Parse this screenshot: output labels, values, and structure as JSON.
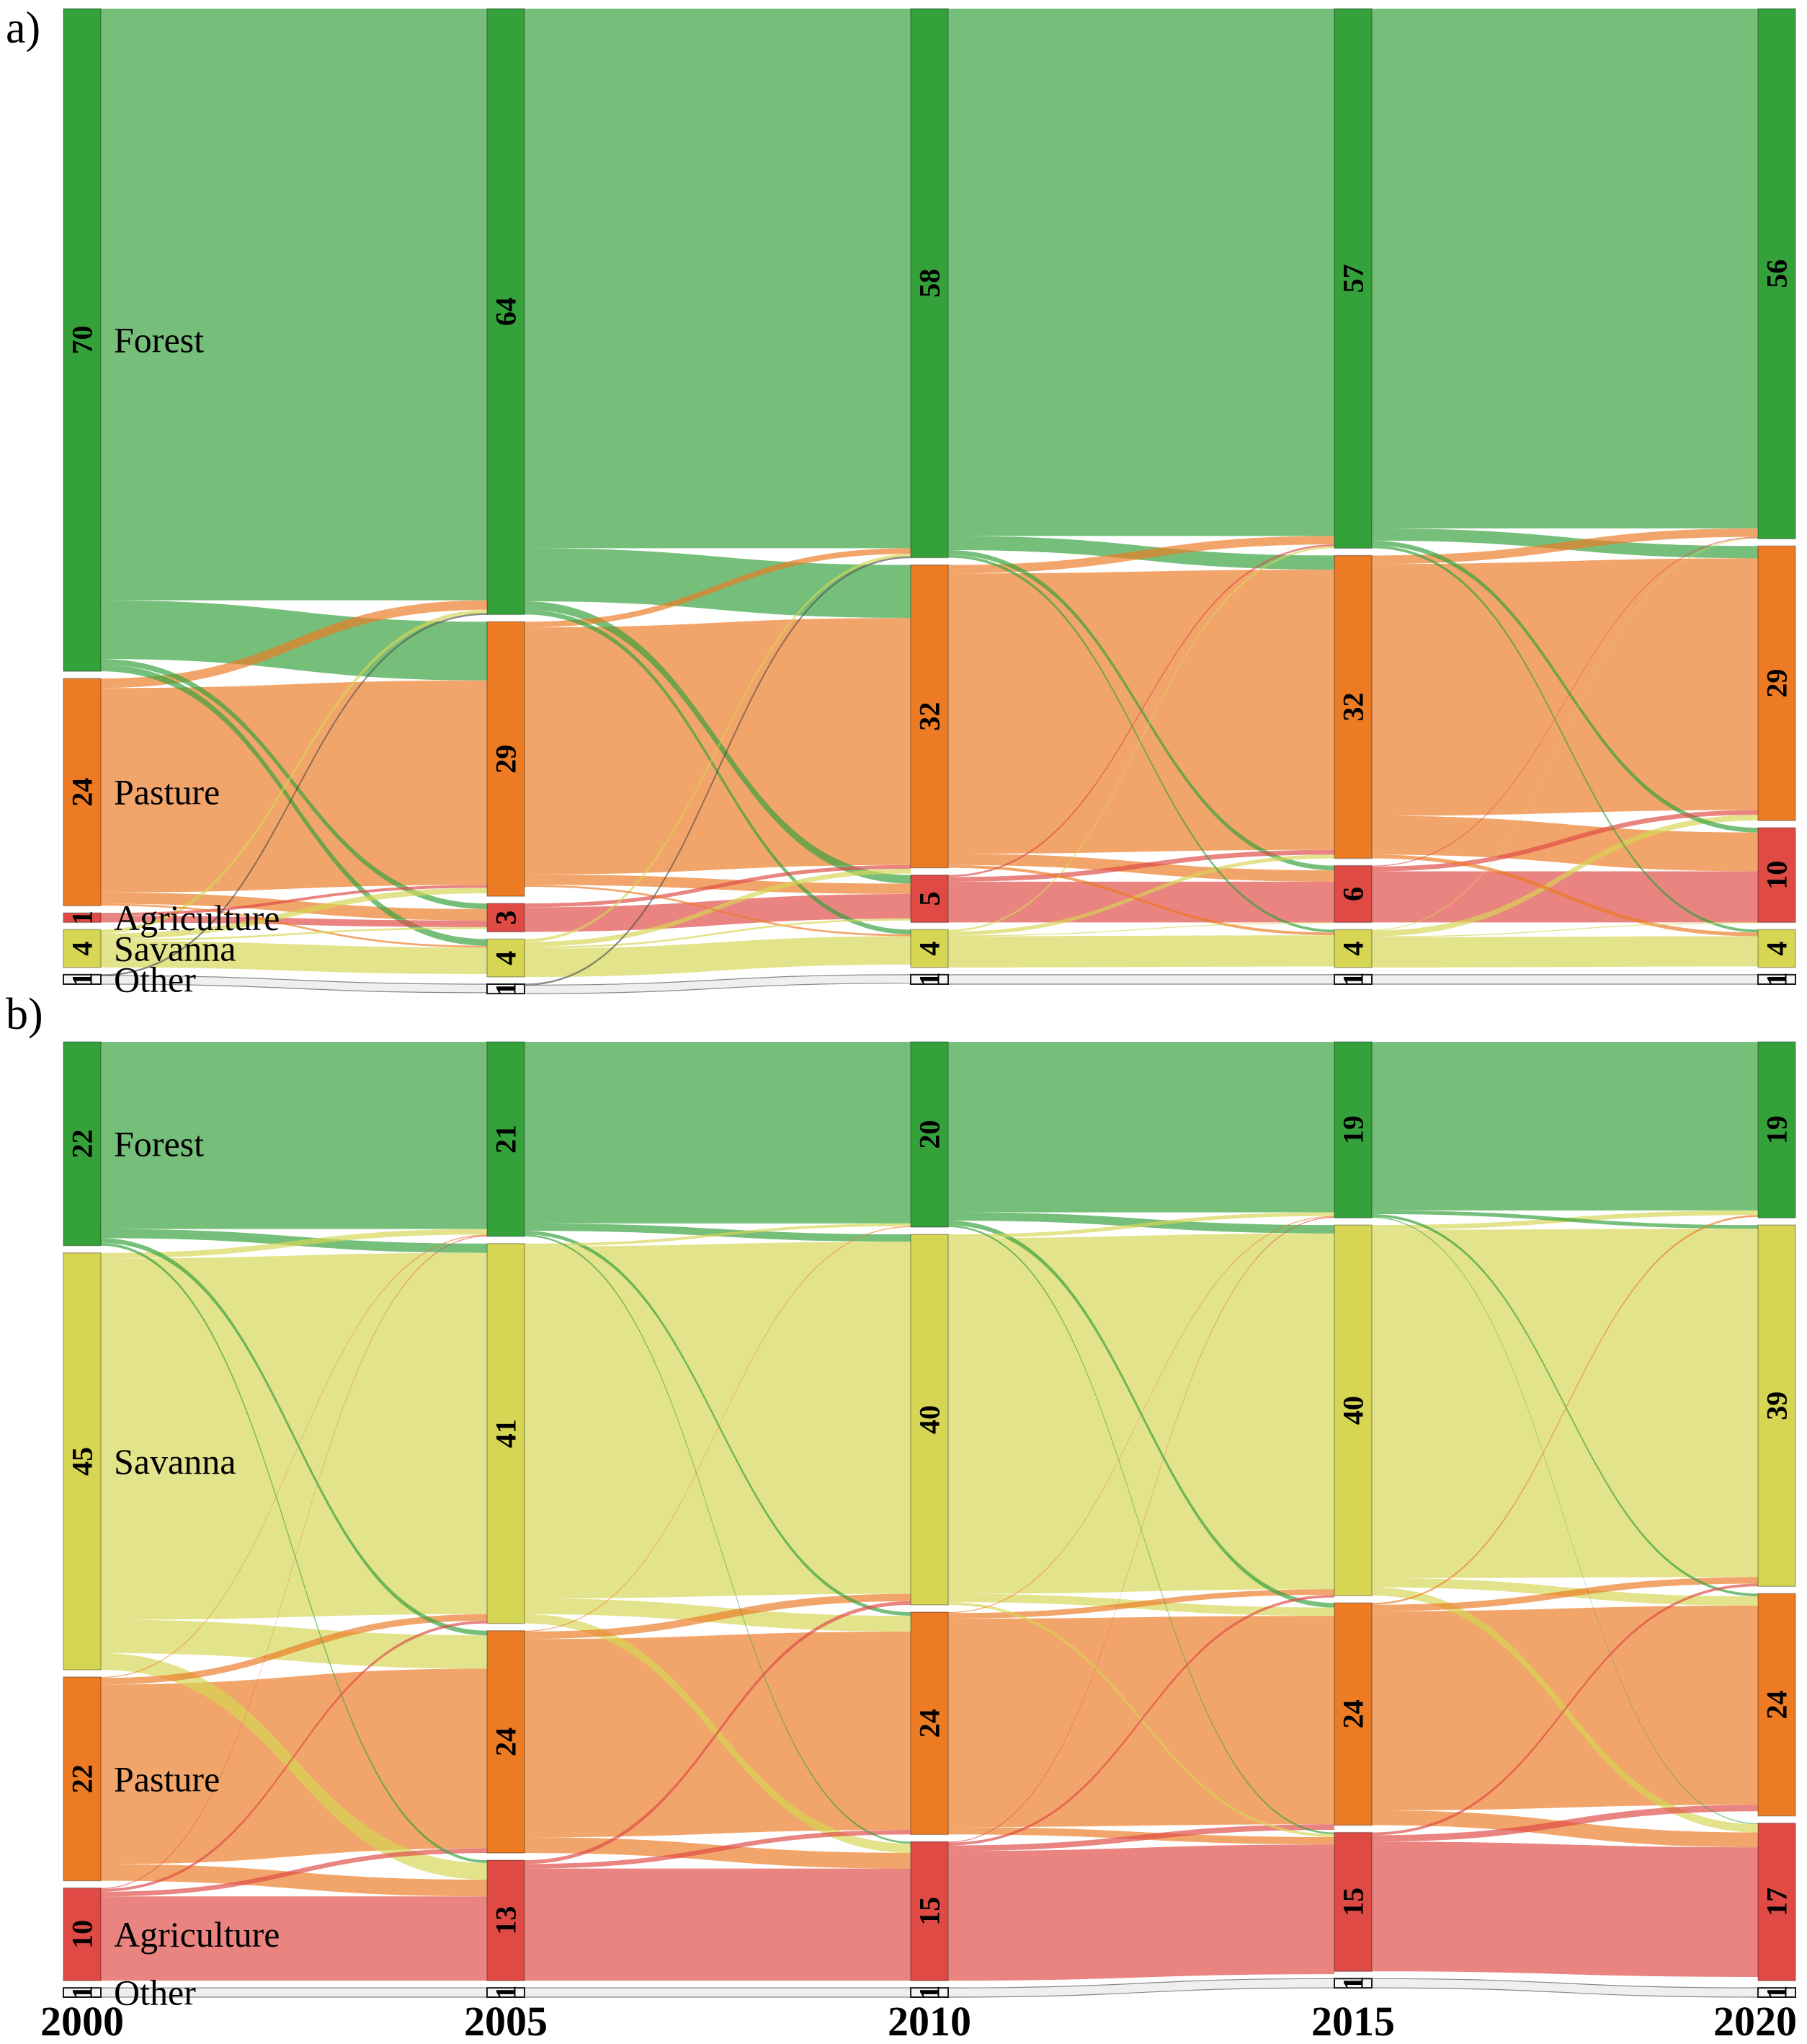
{
  "figure": {
    "panel_a_label": "a)",
    "panel_b_label": "b)",
    "x_axis_years": [
      "2000",
      "2005",
      "2010",
      "2015",
      "2020"
    ]
  },
  "chart_data": [
    {
      "type": "sankey",
      "panel": "a",
      "years": [
        "2000",
        "2005",
        "2010",
        "2015",
        "2020"
      ],
      "grid": false,
      "legend_position": "none",
      "categories": [
        {
          "name": "Forest",
          "color": "#35a13b"
        },
        {
          "name": "Pasture",
          "color": "#ec7b24"
        },
        {
          "name": "Agriculture",
          "color": "#df4a45"
        },
        {
          "name": "Savanna",
          "color": "#d6d654"
        },
        {
          "name": "Other",
          "color": "#f5f5f5"
        }
      ],
      "node_values": {
        "Forest": [
          70,
          64,
          58,
          57,
          56
        ],
        "Pasture": [
          24,
          29,
          32,
          32,
          29
        ],
        "Agriculture": [
          1,
          3,
          5,
          6,
          10
        ],
        "Savanna": [
          4,
          4,
          4,
          4,
          4
        ],
        "Other": [
          1,
          1,
          1,
          1,
          1
        ]
      },
      "flows": [
        [
          [
            "Forest",
            "Forest",
            62.5
          ],
          [
            "Forest",
            "Pasture",
            6.2
          ],
          [
            "Forest",
            "Agriculture",
            0.6
          ],
          [
            "Forest",
            "Savanna",
            0.7
          ],
          [
            "Pasture",
            "Forest",
            1.0
          ],
          [
            "Pasture",
            "Pasture",
            21.6
          ],
          [
            "Pasture",
            "Agriculture",
            1.2
          ],
          [
            "Pasture",
            "Savanna",
            0.2
          ],
          [
            "Agriculture",
            "Pasture",
            0.3
          ],
          [
            "Agriculture",
            "Agriculture",
            0.7
          ],
          [
            "Savanna",
            "Forest",
            0.4
          ],
          [
            "Savanna",
            "Pasture",
            0.6
          ],
          [
            "Savanna",
            "Agriculture",
            0.2
          ],
          [
            "Savanna",
            "Savanna",
            2.8
          ],
          [
            "Other",
            "Forest",
            0.1
          ],
          [
            "Other",
            "Other",
            0.9
          ]
        ],
        [
          [
            "Forest",
            "Forest",
            57.0
          ],
          [
            "Forest",
            "Pasture",
            5.6
          ],
          [
            "Forest",
            "Agriculture",
            0.9
          ],
          [
            "Forest",
            "Savanna",
            0.5
          ],
          [
            "Pasture",
            "Forest",
            0.6
          ],
          [
            "Pasture",
            "Pasture",
            26.1
          ],
          [
            "Pasture",
            "Agriculture",
            1.1
          ],
          [
            "Pasture",
            "Savanna",
            0.2
          ],
          [
            "Agriculture",
            "Pasture",
            0.4
          ],
          [
            "Agriculture",
            "Agriculture",
            2.6
          ],
          [
            "Savanna",
            "Forest",
            0.3
          ],
          [
            "Savanna",
            "Pasture",
            0.5
          ],
          [
            "Savanna",
            "Agriculture",
            0.2
          ],
          [
            "Savanna",
            "Savanna",
            3.0
          ],
          [
            "Other",
            "Forest",
            0.1
          ],
          [
            "Other",
            "Other",
            0.9
          ]
        ],
        [
          [
            "Forest",
            "Forest",
            55.7
          ],
          [
            "Forest",
            "Pasture",
            1.5
          ],
          [
            "Forest",
            "Agriculture",
            0.5
          ],
          [
            "Forest",
            "Savanna",
            0.3
          ],
          [
            "Pasture",
            "Forest",
            0.9
          ],
          [
            "Pasture",
            "Pasture",
            29.6
          ],
          [
            "Pasture",
            "Agriculture",
            1.2
          ],
          [
            "Pasture",
            "Savanna",
            0.3
          ],
          [
            "Agriculture",
            "Forest",
            0.2
          ],
          [
            "Agriculture",
            "Pasture",
            0.5
          ],
          [
            "Agriculture",
            "Agriculture",
            4.3
          ],
          [
            "Savanna",
            "Forest",
            0.2
          ],
          [
            "Savanna",
            "Pasture",
            0.4
          ],
          [
            "Savanna",
            "Agriculture",
            0.1
          ],
          [
            "Savanna",
            "Savanna",
            3.3
          ],
          [
            "Other",
            "Other",
            1.0
          ]
        ],
        [
          [
            "Forest",
            "Forest",
            54.9
          ],
          [
            "Forest",
            "Pasture",
            1.3
          ],
          [
            "Forest",
            "Agriculture",
            0.5
          ],
          [
            "Forest",
            "Savanna",
            0.3
          ],
          [
            "Pasture",
            "Forest",
            0.9
          ],
          [
            "Pasture",
            "Pasture",
            26.6
          ],
          [
            "Pasture",
            "Agriculture",
            4.1
          ],
          [
            "Pasture",
            "Savanna",
            0.4
          ],
          [
            "Agriculture",
            "Forest",
            0.1
          ],
          [
            "Agriculture",
            "Pasture",
            0.5
          ],
          [
            "Agriculture",
            "Agriculture",
            5.4
          ],
          [
            "Savanna",
            "Forest",
            0.1
          ],
          [
            "Savanna",
            "Pasture",
            0.6
          ],
          [
            "Savanna",
            "Agriculture",
            0.1
          ],
          [
            "Savanna",
            "Savanna",
            3.2
          ],
          [
            "Other",
            "Other",
            1.0
          ]
        ]
      ]
    },
    {
      "type": "sankey",
      "panel": "b",
      "years": [
        "2000",
        "2005",
        "2010",
        "2015",
        "2020"
      ],
      "grid": false,
      "legend_position": "none",
      "categories": [
        {
          "name": "Forest",
          "color": "#35a13b"
        },
        {
          "name": "Savanna",
          "color": "#d6d654"
        },
        {
          "name": "Pasture",
          "color": "#ec7b24"
        },
        {
          "name": "Agriculture",
          "color": "#df4a45"
        },
        {
          "name": "Other",
          "color": "#f5f5f5"
        }
      ],
      "node_values": {
        "Forest": [
          22,
          21,
          20,
          19,
          19
        ],
        "Savanna": [
          45,
          41,
          40,
          40,
          39
        ],
        "Pasture": [
          22,
          24,
          24,
          24,
          24
        ],
        "Agriculture": [
          10,
          13,
          15,
          15,
          17
        ],
        "Other": [
          1,
          1,
          1,
          1,
          1
        ]
      },
      "flows": [
        [
          [
            "Forest",
            "Forest",
            20.2
          ],
          [
            "Forest",
            "Savanna",
            1.0
          ],
          [
            "Forest",
            "Pasture",
            0.5
          ],
          [
            "Forest",
            "Agriculture",
            0.3
          ],
          [
            "Savanna",
            "Forest",
            0.6
          ],
          [
            "Savanna",
            "Savanna",
            39.0
          ],
          [
            "Savanna",
            "Pasture",
            3.6
          ],
          [
            "Savanna",
            "Agriculture",
            1.8
          ],
          [
            "Pasture",
            "Forest",
            0.1
          ],
          [
            "Pasture",
            "Savanna",
            0.7
          ],
          [
            "Pasture",
            "Pasture",
            19.4
          ],
          [
            "Pasture",
            "Agriculture",
            1.8
          ],
          [
            "Agriculture",
            "Forest",
            0.1
          ],
          [
            "Agriculture",
            "Savanna",
            0.3
          ],
          [
            "Agriculture",
            "Pasture",
            0.5
          ],
          [
            "Agriculture",
            "Agriculture",
            9.1
          ],
          [
            "Other",
            "Other",
            1.0
          ]
        ],
        [
          [
            "Forest",
            "Forest",
            19.6
          ],
          [
            "Forest",
            "Savanna",
            0.8
          ],
          [
            "Forest",
            "Pasture",
            0.4
          ],
          [
            "Forest",
            "Agriculture",
            0.2
          ],
          [
            "Savanna",
            "Forest",
            0.3
          ],
          [
            "Savanna",
            "Savanna",
            38.0
          ],
          [
            "Savanna",
            "Pasture",
            1.7
          ],
          [
            "Savanna",
            "Agriculture",
            1.0
          ],
          [
            "Pasture",
            "Forest",
            0.1
          ],
          [
            "Pasture",
            "Savanna",
            0.8
          ],
          [
            "Pasture",
            "Pasture",
            21.4
          ],
          [
            "Pasture",
            "Agriculture",
            1.7
          ],
          [
            "Agriculture",
            "Savanna",
            0.4
          ],
          [
            "Agriculture",
            "Pasture",
            0.5
          ],
          [
            "Agriculture",
            "Agriculture",
            12.1
          ],
          [
            "Other",
            "Other",
            1.0
          ]
        ],
        [
          [
            "Forest",
            "Forest",
            18.4
          ],
          [
            "Forest",
            "Savanna",
            0.9
          ],
          [
            "Forest",
            "Pasture",
            0.5
          ],
          [
            "Forest",
            "Agriculture",
            0.2
          ],
          [
            "Savanna",
            "Forest",
            0.4
          ],
          [
            "Savanna",
            "Savanna",
            38.4
          ],
          [
            "Savanna",
            "Pasture",
            0.9
          ],
          [
            "Savanna",
            "Agriculture",
            0.3
          ],
          [
            "Pasture",
            "Forest",
            0.1
          ],
          [
            "Pasture",
            "Savanna",
            0.6
          ],
          [
            "Pasture",
            "Pasture",
            22.5
          ],
          [
            "Pasture",
            "Agriculture",
            0.8
          ],
          [
            "Agriculture",
            "Forest",
            0.1
          ],
          [
            "Agriculture",
            "Savanna",
            0.3
          ],
          [
            "Agriculture",
            "Pasture",
            0.6
          ],
          [
            "Agriculture",
            "Agriculture",
            14.0
          ],
          [
            "Other",
            "Other",
            1.0
          ]
        ],
        [
          [
            "Forest",
            "Forest",
            18.2
          ],
          [
            "Forest",
            "Savanna",
            0.4
          ],
          [
            "Forest",
            "Pasture",
            0.3
          ],
          [
            "Forest",
            "Agriculture",
            0.1
          ],
          [
            "Savanna",
            "Forest",
            0.5
          ],
          [
            "Savanna",
            "Savanna",
            37.6
          ],
          [
            "Savanna",
            "Pasture",
            1.0
          ],
          [
            "Savanna",
            "Agriculture",
            0.9
          ],
          [
            "Pasture",
            "Forest",
            0.2
          ],
          [
            "Pasture",
            "Savanna",
            0.7
          ],
          [
            "Pasture",
            "Pasture",
            21.5
          ],
          [
            "Pasture",
            "Agriculture",
            1.6
          ],
          [
            "Agriculture",
            "Savanna",
            0.3
          ],
          [
            "Agriculture",
            "Pasture",
            0.7
          ],
          [
            "Agriculture",
            "Agriculture",
            14.0
          ],
          [
            "Other",
            "Other",
            1.0
          ]
        ]
      ]
    }
  ]
}
